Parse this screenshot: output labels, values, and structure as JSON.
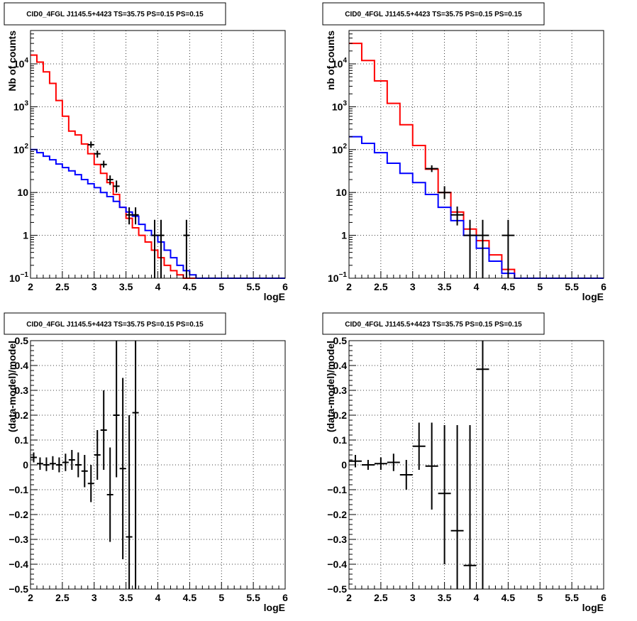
{
  "panels": [
    {
      "id": "top-left",
      "title": "CID0_4FGL J1145.5+4423 TS=35.75 PS=0.15 PS=0.15",
      "chart_data": {
        "type": "line",
        "xlabel": "logE",
        "ylabel": "Nb of counts",
        "xlim": [
          2,
          6
        ],
        "ylim": [
          0.1,
          60000
        ],
        "yscale": "log",
        "xticks": [
          "2",
          "2.5",
          "3",
          "3.5",
          "4",
          "4.5",
          "5",
          "5.5",
          "6"
        ],
        "yticks": [
          {
            "value": 0.1,
            "label": "10",
            "exp": "−1"
          },
          {
            "value": 1,
            "label": "1",
            "exp": ""
          },
          {
            "value": 10,
            "label": "10",
            "exp": ""
          },
          {
            "value": 100,
            "label": "10",
            "exp": "2"
          },
          {
            "value": 1000,
            "label": "10",
            "exp": "3"
          },
          {
            "value": 10000,
            "label": "10",
            "exp": "4"
          }
        ],
        "grid": true,
        "bin_edges": [
          2.0,
          2.1,
          2.2,
          2.3,
          2.4,
          2.5,
          2.6,
          2.7,
          2.8,
          2.9,
          3.0,
          3.1,
          3.2,
          3.3,
          3.4,
          3.5,
          3.6,
          3.7,
          3.8,
          3.9,
          4.0,
          4.1,
          4.2,
          4.3,
          4.4,
          4.5,
          4.6,
          4.7,
          4.8,
          4.9,
          5.0,
          5.1,
          5.2,
          5.3,
          5.4,
          5.5,
          5.6,
          5.7,
          5.8,
          5.9,
          6.0
        ],
        "series": [
          {
            "color": "#ff0000",
            "values": [
              16000,
              11000,
              6500,
              3500,
              1400,
              600,
              270,
              220,
              135,
              80,
              45,
              28,
              17,
              9,
              4.5,
              2.5,
              1.5,
              1.0,
              0.7,
              0.45,
              0.3,
              0.2,
              0.15,
              0.12,
              0.1,
              0.1,
              0.1,
              0.1,
              0.1,
              0.1,
              0.1,
              0.1,
              0.1,
              0.1,
              0.1,
              0.1,
              0.1,
              0.1,
              0.1,
              0.1
            ]
          },
          {
            "color": "#0000ff",
            "values": [
              100,
              85,
              70,
              58,
              46,
              38,
              32,
              26,
              20,
              16,
              13,
              10,
              8,
              6.2,
              4.5,
              3.5,
              2.8,
              1.8,
              1.3,
              1.0,
              0.7,
              0.45,
              0.3,
              0.2,
              0.15,
              0.12,
              0.1,
              0.1,
              0.1,
              0.1,
              0.1,
              0.1,
              0.1,
              0.1,
              0.1,
              0.1,
              0.1,
              0.1,
              0.1,
              0.1
            ]
          }
        ],
        "points": [
          {
            "x": 2.95,
            "xerr": 0.05,
            "y": 130,
            "ylo": 110,
            "yhi": 155
          },
          {
            "x": 3.05,
            "xerr": 0.05,
            "y": 80,
            "ylo": 65,
            "yhi": 95
          },
          {
            "x": 3.15,
            "xerr": 0.05,
            "y": 45,
            "ylo": 38,
            "yhi": 55
          },
          {
            "x": 3.25,
            "xerr": 0.05,
            "y": 20,
            "ylo": 15,
            "yhi": 25
          },
          {
            "x": 3.35,
            "xerr": 0.05,
            "y": 14,
            "ylo": 10,
            "yhi": 19
          },
          {
            "x": 3.55,
            "xerr": 0.05,
            "y": 3,
            "ylo": 1.8,
            "yhi": 4.5
          },
          {
            "x": 3.65,
            "xerr": 0.05,
            "y": 3,
            "ylo": 1.8,
            "yhi": 4.5
          },
          {
            "x": 3.95,
            "xerr": 0.05,
            "y": 1,
            "ylo": 0.1,
            "yhi": 2.3
          },
          {
            "x": 4.05,
            "xerr": 0.05,
            "y": 1,
            "ylo": 0.1,
            "yhi": 2.3
          },
          {
            "x": 4.45,
            "xerr": 0.05,
            "y": 1,
            "ylo": 0.1,
            "yhi": 2.3
          }
        ]
      }
    },
    {
      "id": "top-right",
      "title": "CID0_4FGL J1145.5+4423 TS=35.75 PS=0.15 PS=0.15",
      "chart_data": {
        "type": "line",
        "xlabel": "logE",
        "ylabel": "nb of counts",
        "xlim": [
          2,
          6
        ],
        "ylim": [
          0.1,
          60000
        ],
        "yscale": "log",
        "xticks": [
          "2",
          "2.5",
          "3",
          "3.5",
          "4",
          "4.5",
          "5",
          "5.5",
          "6"
        ],
        "yticks": [
          {
            "value": 0.1,
            "label": "10",
            "exp": "−1"
          },
          {
            "value": 1,
            "label": "1",
            "exp": ""
          },
          {
            "value": 10,
            "label": "10",
            "exp": ""
          },
          {
            "value": 100,
            "label": "10",
            "exp": "2"
          },
          {
            "value": 1000,
            "label": "10",
            "exp": "3"
          },
          {
            "value": 10000,
            "label": "10",
            "exp": "4"
          }
        ],
        "grid": true,
        "bin_edges": [
          2.0,
          2.2,
          2.4,
          2.6,
          2.8,
          3.0,
          3.2,
          3.4,
          3.6,
          3.8,
          4.0,
          4.2,
          4.4,
          4.6,
          4.8,
          5.0,
          5.2,
          5.4,
          5.6,
          5.8,
          6.0
        ],
        "series": [
          {
            "color": "#ff0000",
            "values": [
              30000,
              12000,
              4000,
              1200,
              380,
              125,
              35,
              10,
              3.5,
              1.4,
              0.75,
              0.35,
              0.16,
              0.1,
              0.1,
              0.1,
              0.1,
              0.1,
              0.1,
              0.1
            ]
          },
          {
            "color": "#0000ff",
            "values": [
              200,
              140,
              85,
              48,
              28,
              17,
              9,
              4.5,
              2.2,
              1.0,
              0.5,
              0.25,
              0.13,
              0.1,
              0.1,
              0.1,
              0.1,
              0.1,
              0.1,
              0.1
            ]
          }
        ],
        "points": [
          {
            "x": 3.3,
            "xerr": 0.1,
            "y": 36,
            "ylo": 30,
            "yhi": 43
          },
          {
            "x": 3.5,
            "xerr": 0.1,
            "y": 10,
            "ylo": 7,
            "yhi": 14
          },
          {
            "x": 3.7,
            "xerr": 0.1,
            "y": 3,
            "ylo": 1.7,
            "yhi": 4.7
          },
          {
            "x": 3.9,
            "xerr": 0.1,
            "y": 1,
            "ylo": 0.1,
            "yhi": 2.3
          },
          {
            "x": 4.1,
            "xerr": 0.1,
            "y": 1,
            "ylo": 0.1,
            "yhi": 2.3
          },
          {
            "x": 4.5,
            "xerr": 0.1,
            "y": 1,
            "ylo": 0.1,
            "yhi": 2.3
          }
        ]
      }
    },
    {
      "id": "bottom-left",
      "title": "CID0_4FGL J1145.5+4423 TS=35.75 PS=0.15 PS=0.15",
      "chart_data": {
        "type": "scatter",
        "xlabel": "logE",
        "ylabel": "(data-model)/model",
        "xlim": [
          2,
          6
        ],
        "ylim": [
          -0.5,
          0.5
        ],
        "yscale": "linear",
        "xticks": [
          "2",
          "2.5",
          "3",
          "3.5",
          "4",
          "4.5",
          "5",
          "5.5",
          "6"
        ],
        "yticks": [
          {
            "value": -0.5,
            "label": "−0.5"
          },
          {
            "value": -0.4,
            "label": "−0.4"
          },
          {
            "value": -0.3,
            "label": "−0.3"
          },
          {
            "value": -0.2,
            "label": "−0.2"
          },
          {
            "value": -0.1,
            "label": "−0.1"
          },
          {
            "value": 0,
            "label": "0"
          },
          {
            "value": 0.1,
            "label": "0.1"
          },
          {
            "value": 0.2,
            "label": "0.2"
          },
          {
            "value": 0.3,
            "label": "0.3"
          },
          {
            "value": 0.4,
            "label": "0.4"
          },
          {
            "value": 0.5,
            "label": "0.5"
          }
        ],
        "grid": true,
        "points": [
          {
            "x": 2.05,
            "xerr": 0.05,
            "y": 0.03,
            "ylo": 0.01,
            "yhi": 0.05
          },
          {
            "x": 2.15,
            "xerr": 0.05,
            "y": 0.005,
            "ylo": -0.02,
            "yhi": 0.03
          },
          {
            "x": 2.25,
            "xerr": 0.05,
            "y": 0.0,
            "ylo": -0.025,
            "yhi": 0.03
          },
          {
            "x": 2.35,
            "xerr": 0.05,
            "y": 0.005,
            "ylo": -0.02,
            "yhi": 0.035
          },
          {
            "x": 2.45,
            "xerr": 0.05,
            "y": 0.0,
            "ylo": -0.03,
            "yhi": 0.03
          },
          {
            "x": 2.55,
            "xerr": 0.05,
            "y": 0.01,
            "ylo": -0.025,
            "yhi": 0.045
          },
          {
            "x": 2.65,
            "xerr": 0.05,
            "y": 0.02,
            "ylo": -0.02,
            "yhi": 0.06
          },
          {
            "x": 2.75,
            "xerr": 0.05,
            "y": 0.0,
            "ylo": -0.05,
            "yhi": 0.05
          },
          {
            "x": 2.85,
            "xerr": 0.05,
            "y": -0.025,
            "ylo": -0.09,
            "yhi": 0.04
          },
          {
            "x": 2.95,
            "xerr": 0.05,
            "y": -0.075,
            "ylo": -0.15,
            "yhi": 0.0
          },
          {
            "x": 3.05,
            "xerr": 0.05,
            "y": 0.04,
            "ylo": -0.06,
            "yhi": 0.14
          },
          {
            "x": 3.15,
            "xerr": 0.05,
            "y": 0.14,
            "ylo": -0.02,
            "yhi": 0.3
          },
          {
            "x": 3.25,
            "xerr": 0.05,
            "y": -0.12,
            "ylo": -0.31,
            "yhi": 0.07
          },
          {
            "x": 3.35,
            "xerr": 0.05,
            "y": 0.2,
            "ylo": -0.05,
            "yhi": 0.5
          },
          {
            "x": 3.45,
            "xerr": 0.05,
            "y": -0.015,
            "ylo": -0.38,
            "yhi": 0.35
          },
          {
            "x": 3.55,
            "xerr": 0.05,
            "y": -0.29,
            "ylo": -0.5,
            "yhi": 0.2
          },
          {
            "x": 3.65,
            "xerr": 0.05,
            "y": 0.21,
            "ylo": -0.5,
            "yhi": 0.5
          }
        ]
      }
    },
    {
      "id": "bottom-right",
      "title": "CID0_4FGL J1145.5+4423 TS=35.75 PS=0.15 PS=0.15",
      "chart_data": {
        "type": "scatter",
        "xlabel": "logE",
        "ylabel": "(data-model)/model",
        "xlim": [
          2,
          6
        ],
        "ylim": [
          -0.5,
          0.5
        ],
        "yscale": "linear",
        "xticks": [
          "2",
          "2.5",
          "3",
          "3.5",
          "4",
          "4.5",
          "5",
          "5.5",
          "6"
        ],
        "yticks": [
          {
            "value": -0.5,
            "label": "−0.5"
          },
          {
            "value": -0.4,
            "label": "−0.4"
          },
          {
            "value": -0.3,
            "label": "−0.3"
          },
          {
            "value": -0.2,
            "label": "−0.2"
          },
          {
            "value": -0.1,
            "label": "−0.1"
          },
          {
            "value": 0,
            "label": "0"
          },
          {
            "value": 0.1,
            "label": "0.1"
          },
          {
            "value": 0.2,
            "label": "0.2"
          },
          {
            "value": 0.3,
            "label": "0.3"
          },
          {
            "value": 0.4,
            "label": "0.4"
          },
          {
            "value": 0.5,
            "label": "0.5"
          }
        ],
        "grid": true,
        "points": [
          {
            "x": 2.1,
            "xerr": 0.1,
            "y": 0.015,
            "ylo": -0.01,
            "yhi": 0.04
          },
          {
            "x": 2.3,
            "xerr": 0.1,
            "y": 0.0,
            "ylo": -0.02,
            "yhi": 0.02
          },
          {
            "x": 2.5,
            "xerr": 0.1,
            "y": 0.005,
            "ylo": -0.02,
            "yhi": 0.03
          },
          {
            "x": 2.7,
            "xerr": 0.1,
            "y": 0.01,
            "ylo": -0.025,
            "yhi": 0.045
          },
          {
            "x": 2.9,
            "xerr": 0.1,
            "y": -0.04,
            "ylo": -0.1,
            "yhi": 0.02
          },
          {
            "x": 3.1,
            "xerr": 0.1,
            "y": 0.075,
            "ylo": -0.02,
            "yhi": 0.17
          },
          {
            "x": 3.3,
            "xerr": 0.1,
            "y": -0.005,
            "ylo": -0.18,
            "yhi": 0.17
          },
          {
            "x": 3.5,
            "xerr": 0.1,
            "y": -0.115,
            "ylo": -0.4,
            "yhi": 0.16
          },
          {
            "x": 3.7,
            "xerr": 0.1,
            "y": -0.265,
            "ylo": -0.5,
            "yhi": 0.16
          },
          {
            "x": 3.9,
            "xerr": 0.1,
            "y": -0.405,
            "ylo": -0.5,
            "yhi": 0.16
          },
          {
            "x": 4.1,
            "xerr": 0.1,
            "y": 0.385,
            "ylo": -0.5,
            "yhi": 0.5
          }
        ]
      }
    }
  ]
}
